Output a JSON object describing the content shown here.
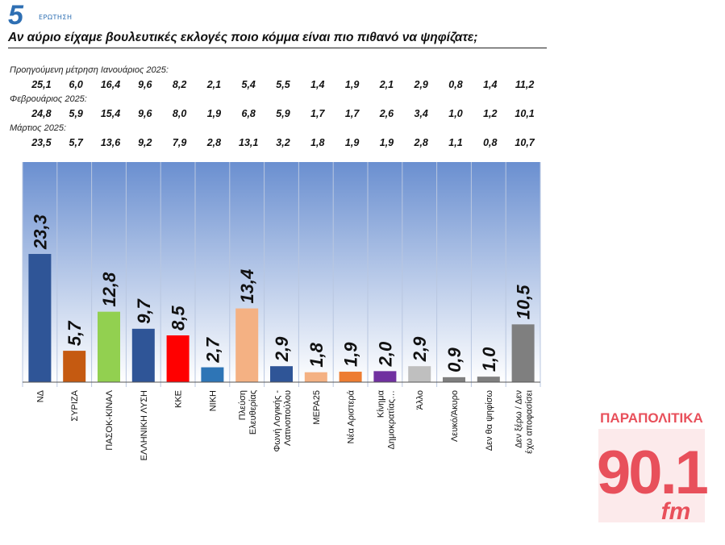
{
  "header": {
    "question_number": "5",
    "question_label": "ΕΡΩΤΗΣΗ",
    "question_text": "Αν αύριο είχαμε βουλευτικές εκλογές ποιο κόμμα είναι πιο πιθανό να ψηφίζατε;"
  },
  "previous_measurements": [
    {
      "label": "Προηγούμενη μέτρηση Ιανουάριος 2025:",
      "values": [
        "25,1",
        "6,0",
        "16,4",
        "9,6",
        "8,2",
        "2,1",
        "5,4",
        "5,5",
        "1,4",
        "1,9",
        "2,1",
        "2,9",
        "0,8",
        "1,4",
        "11,2"
      ]
    },
    {
      "label": "Φεβρουάριος 2025:",
      "values": [
        "24,8",
        "5,9",
        "15,4",
        "9,6",
        "8,0",
        "1,9",
        "6,8",
        "5,9",
        "1,7",
        "1,7",
        "2,6",
        "3,4",
        "1,0",
        "1,2",
        "10,1"
      ]
    },
    {
      "label": "Μάρτιος 2025:",
      "values": [
        "23,5",
        "5,7",
        "13,6",
        "9,2",
        "7,9",
        "2,8",
        "13,1",
        "3,2",
        "1,8",
        "1,9",
        "1,9",
        "2,8",
        "1,1",
        "0,8",
        "10,7"
      ]
    }
  ],
  "chart_data": {
    "type": "bar",
    "categories": [
      "ΝΔ",
      "ΣΥΡΙΖΑ",
      "ΠΑΣΟΚ-ΚΙΝΑΛ",
      "ΕΛΛΗΝΙΚΗ ΛΥΣΗ",
      "ΚΚΕ",
      "ΝΙΚΗ",
      "Πλεύση\nΕλευθερίας",
      "Φωνή Λογικής -\nΛατινοπούλου",
      "ΜΕΡΑ25",
      "Νέα Αριστερά",
      "Κίνημα\nΔημοκρατίας…",
      "Άλλο",
      "Λευκό/Άκυρο",
      "Δεν θα ψηφίσω",
      "Δεν ξέρω / Δεν\nέχω αποφασίσει"
    ],
    "values": [
      23.3,
      5.7,
      12.8,
      9.7,
      8.5,
      2.7,
      13.4,
      2.9,
      1.8,
      1.9,
      2.0,
      2.9,
      0.9,
      1.0,
      10.5
    ],
    "value_labels": [
      "23,3",
      "5,7",
      "12,8",
      "9,7",
      "8,5",
      "2,7",
      "13,4",
      "2,9",
      "1,8",
      "1,9",
      "2,0",
      "2,9",
      "0,9",
      "1,0",
      "10,5"
    ],
    "colors": [
      "#2f5597",
      "#c55a11",
      "#92d050",
      "#2f5597",
      "#ff0000",
      "#2e75b6",
      "#f4b183",
      "#2f5597",
      "#f4b183",
      "#ed7d31",
      "#7030a0",
      "#bfbfbf",
      "#7f7f7f",
      "#7f7f7f",
      "#7f7f7f"
    ],
    "title": "",
    "xlabel": "",
    "ylabel": "",
    "ylim": [
      0,
      40
    ],
    "grid": true,
    "background_gradient": [
      "#6a8fd0",
      "#ffffff"
    ]
  },
  "logo": {
    "top_text": "ΠΑΡΑΠΟΛΙΤΙΚΑ",
    "main_text": "90.1",
    "sub_text": "fm",
    "color": "#e8505b"
  }
}
